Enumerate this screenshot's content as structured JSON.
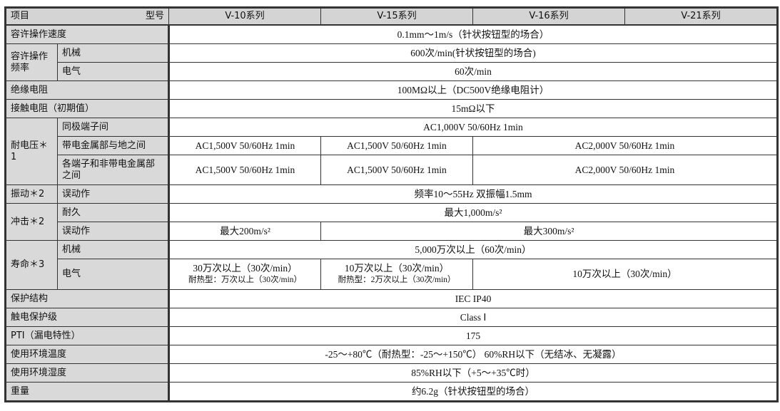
{
  "header": {
    "item": "项目",
    "model": "型号",
    "cols": [
      "V-10系列",
      "V-15系列",
      "V-16系列",
      "V-21系列"
    ]
  },
  "rows": {
    "speed": {
      "label": "容许操作速度",
      "value": "0.1mm～1m/s（针状按钮型的场合）"
    },
    "freq": {
      "label": "容许操作频率",
      "mech": "机械",
      "mech_value": "600次/min(针状按钮型的场合)",
      "elec": "电气",
      "elec_value": "60次/min"
    },
    "insulation": {
      "label": "绝缘电阻",
      "value": "100MΩ以上（DC500V绝缘电阻计）"
    },
    "contact": {
      "label": "接触电阻（初期值）",
      "value": "15mΩ以下"
    },
    "dielectric": {
      "label": "耐电压＊1",
      "same_pole": "同极端子间",
      "same_pole_value": "AC1,000V 50/60Hz 1min",
      "live_ground": "带电金属部与地之间",
      "live_ground_values": [
        "AC1,500V 50/60Hz 1min",
        "AC1,500V 50/60Hz 1min",
        "AC2,000V 50/60Hz 1min"
      ],
      "terminal_nonlive": "各端子和非带电金属部之间",
      "terminal_nonlive_values": [
        "AC1,500V 50/60Hz 1min",
        "AC1,500V 50/60Hz 1min",
        "AC2,000V 50/60Hz 1min"
      ]
    },
    "vibration": {
      "label": "振动＊2",
      "sub": "误动作",
      "value": "频率10～55Hz  双振幅1.5mm"
    },
    "shock": {
      "label": "冲击＊2",
      "durability": "耐久",
      "durability_value": "最大1,000m/s²",
      "malfunction": "误动作",
      "malfunction_values": [
        "最大200m/s²",
        "最大300m/s²"
      ]
    },
    "life": {
      "label": "寿命＊3",
      "mech": "机械",
      "mech_value": "5,000万次以上（60次/min）",
      "elec": "电气",
      "elec_v10": "30万次以上（30次/min）",
      "elec_v10_heat": "耐热型：万次以上（30次/min）",
      "elec_v15": "10万次以上（30次/min）",
      "elec_v15_heat": "耐热型：2万次以上（30次/min）",
      "elec_rest": "10万次以上（30次/min）"
    },
    "protection": {
      "label": "保护结构",
      "value": "IEC IP40"
    },
    "shock_class": {
      "label": "触电保护级",
      "value": "Class Ⅰ"
    },
    "pti": {
      "label": "PTI（漏电特性）",
      "value": "175"
    },
    "temp": {
      "label": "使用环境温度",
      "value": "-25～+80℃（耐热型：-25～+150℃） 60%RH以下（无结冰、无凝露）"
    },
    "humidity": {
      "label": "使用环境湿度",
      "value": "85%RH以下（+5～+35℃时）"
    },
    "weight": {
      "label": "重量",
      "value": "约6.2g（针状按钮型的场合）"
    }
  }
}
